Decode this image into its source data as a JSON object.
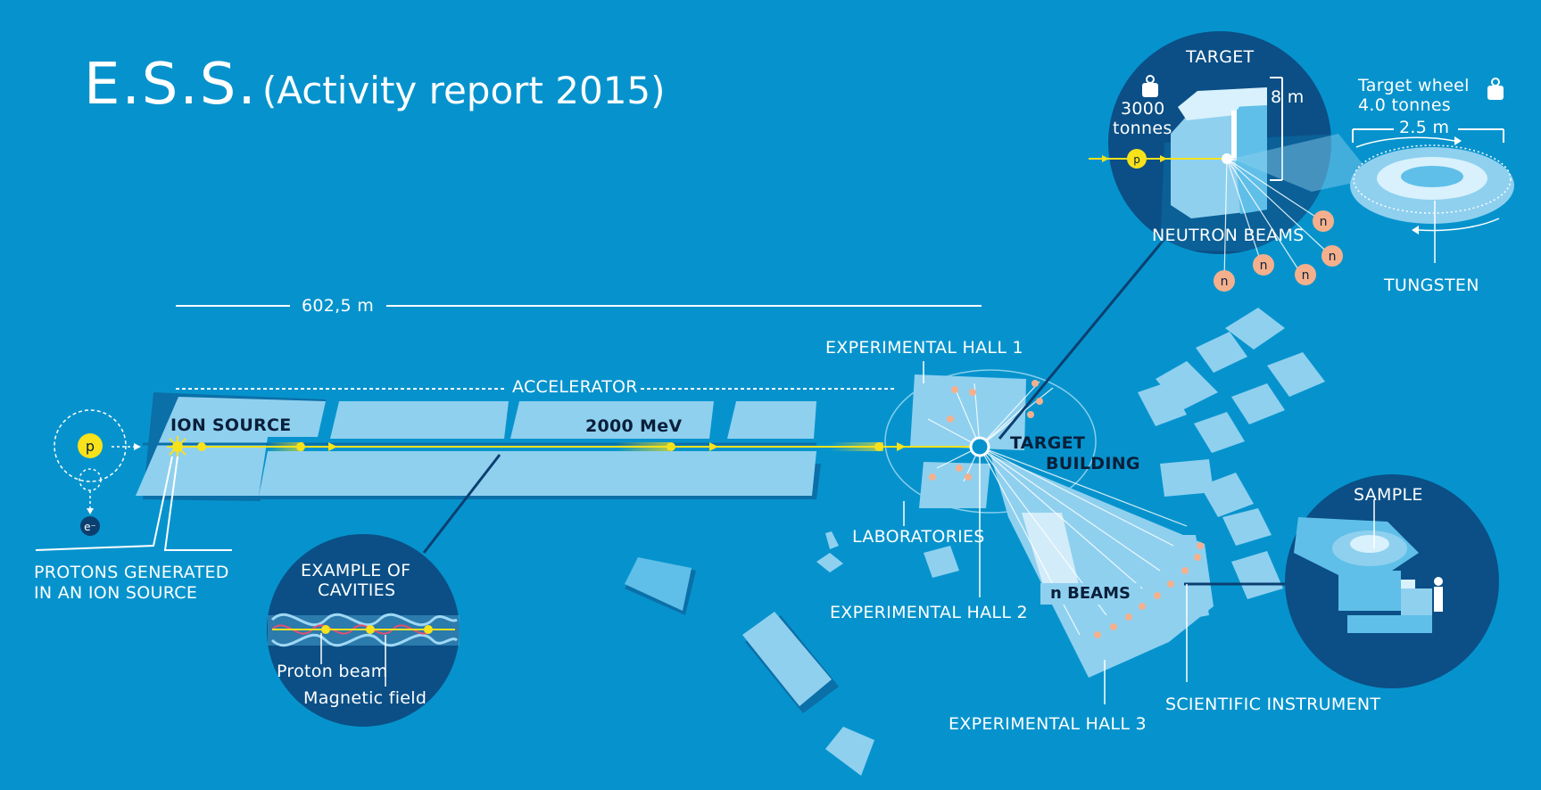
{
  "title": {
    "main": "E.S.S.",
    "sub": "(Activity report 2015)"
  },
  "labels": {
    "length": "602,5 m",
    "accelerator": "ACCELERATOR",
    "ion_source": "ION SOURCE",
    "energy": "2000 MeV",
    "protons_generated_1": "PROTONS GENERATED",
    "protons_generated_2": "IN AN ION SOURCE",
    "proton_symbol": "p",
    "electron_symbol": "e⁻",
    "cavities_1": "EXAMPLE OF",
    "cavities_2": "CAVITIES",
    "proton_beam": "Proton beam",
    "magnetic_field": "Magnetic field",
    "hall1": "EXPERIMENTAL HALL 1",
    "target_building_1": "TARGET",
    "target_building_2": "BUILDING",
    "laboratories": "LABORATORIES",
    "hall2": "EXPERIMENTAL HALL 2",
    "hall3": "EXPERIMENTAL HALL 3",
    "n_beams": "n BEAMS",
    "scientific_instrument": "SCIENTIFIC INSTRUMENT",
    "sample": "SAMPLE",
    "target": "TARGET",
    "target_mass_1": "3000",
    "target_mass_2": "tonnes",
    "target_height": "8 m",
    "neutron_beams": "NEUTRON BEAMS",
    "neutron_symbol": "n",
    "wheel_1": "Target wheel",
    "wheel_2": "4.0 tonnes",
    "wheel_diameter": "2.5 m",
    "tungsten": "TUNGSTEN"
  },
  "colors": {
    "background": "#0693cd",
    "building": "#8fd0ef",
    "building_shadow": "#0b6fa8",
    "circle": "#0b4f86",
    "proton": "#f7e21b",
    "neutron": "#f4b08d",
    "label_dark": "#0a1f3a"
  },
  "icons": [
    "weight-icon",
    "proton-icon",
    "electron-icon",
    "neutron-icon",
    "spallation-flash-icon"
  ]
}
